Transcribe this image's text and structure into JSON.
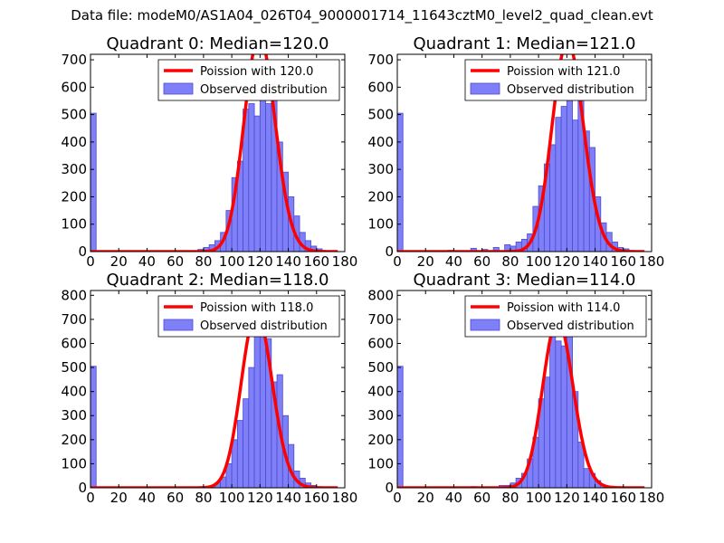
{
  "figure": {
    "suptitle": "Data file: modeM0/AS1A04_026T04_9000001714_11643cztM0_level2_quad_clean.evt"
  },
  "colors": {
    "hist_fill": "#7f7ff8",
    "hist_edge": "#4b4bd4",
    "poisson_line": "#ff0000"
  },
  "chart_data": [
    {
      "type": "bar+line",
      "title": "Quadrant 0: Median=120.0",
      "xlim": [
        0,
        180
      ],
      "ylim": [
        0,
        720
      ],
      "xticks": [
        0,
        20,
        40,
        60,
        80,
        100,
        120,
        140,
        160,
        180
      ],
      "yticks": [
        0,
        100,
        200,
        300,
        400,
        500,
        600,
        700
      ],
      "legend": [
        "Poission with 120.0",
        "Observed distribution"
      ],
      "legend_position": "top-right",
      "bin_width": 4,
      "median": 120.0,
      "hist": [
        [
          0,
          505
        ],
        [
          76,
          8
        ],
        [
          80,
          15
        ],
        [
          84,
          25
        ],
        [
          88,
          40
        ],
        [
          92,
          70
        ],
        [
          96,
          150
        ],
        [
          100,
          270
        ],
        [
          104,
          330
        ],
        [
          108,
          520
        ],
        [
          112,
          540
        ],
        [
          116,
          495
        ],
        [
          120,
          640
        ],
        [
          124,
          540
        ],
        [
          128,
          600
        ],
        [
          132,
          400
        ],
        [
          136,
          290
        ],
        [
          140,
          200
        ],
        [
          144,
          130
        ],
        [
          148,
          70
        ],
        [
          152,
          40
        ],
        [
          156,
          20
        ],
        [
          160,
          10
        ]
      ]
    },
    {
      "type": "bar+line",
      "title": "Quadrant 1: Median=121.0",
      "xlim": [
        0,
        180
      ],
      "ylim": [
        0,
        720
      ],
      "xticks": [
        0,
        20,
        40,
        60,
        80,
        100,
        120,
        140,
        160,
        180
      ],
      "yticks": [
        0,
        100,
        200,
        300,
        400,
        500,
        600,
        700
      ],
      "legend": [
        "Poission with 121.0",
        "Observed distribution"
      ],
      "legend_position": "top-right",
      "bin_width": 4,
      "median": 121.0,
      "hist": [
        [
          0,
          505
        ],
        [
          36,
          5
        ],
        [
          52,
          12
        ],
        [
          60,
          8
        ],
        [
          68,
          15
        ],
        [
          76,
          25
        ],
        [
          80,
          20
        ],
        [
          84,
          35
        ],
        [
          88,
          45
        ],
        [
          92,
          65
        ],
        [
          96,
          165
        ],
        [
          100,
          240
        ],
        [
          104,
          320
        ],
        [
          108,
          390
        ],
        [
          112,
          490
        ],
        [
          116,
          530
        ],
        [
          120,
          600
        ],
        [
          124,
          480
        ],
        [
          128,
          590
        ],
        [
          132,
          440
        ],
        [
          136,
          380
        ],
        [
          140,
          200
        ],
        [
          144,
          105
        ],
        [
          148,
          70
        ],
        [
          152,
          35
        ],
        [
          156,
          15
        ],
        [
          160,
          10
        ]
      ]
    },
    {
      "type": "bar+line",
      "title": "Quadrant 2: Median=118.0",
      "xlim": [
        0,
        180
      ],
      "ylim": [
        0,
        820
      ],
      "xticks": [
        0,
        20,
        40,
        60,
        80,
        100,
        120,
        140,
        160,
        180
      ],
      "yticks": [
        0,
        100,
        200,
        300,
        400,
        500,
        600,
        700,
        800
      ],
      "legend": [
        "Poission with 118.0",
        "Observed distribution"
      ],
      "legend_position": "top-right",
      "bin_width": 4,
      "median": 118.0,
      "hist": [
        [
          0,
          505
        ],
        [
          84,
          8
        ],
        [
          88,
          20
        ],
        [
          92,
          45
        ],
        [
          96,
          100
        ],
        [
          100,
          200
        ],
        [
          104,
          280
        ],
        [
          108,
          370
        ],
        [
          112,
          500
        ],
        [
          116,
          660
        ],
        [
          120,
          640
        ],
        [
          124,
          620
        ],
        [
          128,
          440
        ],
        [
          132,
          470
        ],
        [
          136,
          300
        ],
        [
          140,
          180
        ],
        [
          144,
          70
        ],
        [
          148,
          40
        ],
        [
          152,
          20
        ],
        [
          156,
          10
        ]
      ]
    },
    {
      "type": "bar+line",
      "title": "Quadrant 3: Median=114.0",
      "xlim": [
        0,
        180
      ],
      "ylim": [
        0,
        820
      ],
      "xticks": [
        0,
        20,
        40,
        60,
        80,
        100,
        120,
        140,
        160,
        180
      ],
      "yticks": [
        0,
        100,
        200,
        300,
        400,
        500,
        600,
        700,
        800
      ],
      "legend": [
        "Poission with 114.0",
        "Observed distribution"
      ],
      "legend_position": "top-right",
      "bin_width": 4,
      "median": 114.0,
      "hist": [
        [
          0,
          505
        ],
        [
          52,
          5
        ],
        [
          72,
          10
        ],
        [
          76,
          10
        ],
        [
          80,
          20
        ],
        [
          84,
          40
        ],
        [
          88,
          60
        ],
        [
          92,
          120
        ],
        [
          96,
          210
        ],
        [
          100,
          370
        ],
        [
          104,
          460
        ],
        [
          108,
          680
        ],
        [
          112,
          610
        ],
        [
          116,
          590
        ],
        [
          120,
          720
        ],
        [
          124,
          400
        ],
        [
          128,
          190
        ],
        [
          132,
          80
        ],
        [
          136,
          60
        ],
        [
          140,
          30
        ],
        [
          144,
          10
        ],
        [
          148,
          5
        ]
      ]
    }
  ]
}
